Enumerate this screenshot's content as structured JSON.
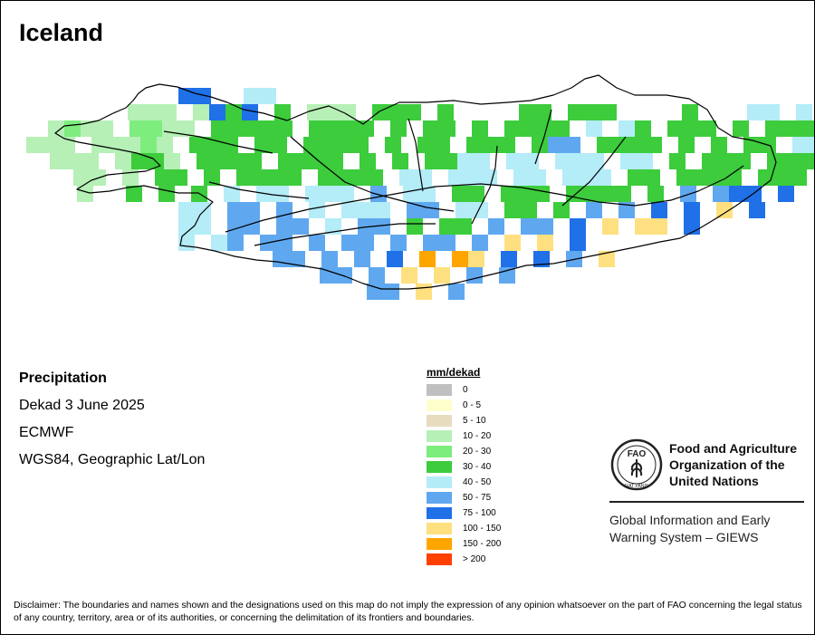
{
  "map_title": "Iceland",
  "info": {
    "variable": "Precipitation",
    "period": "Dekad 3 June 2025",
    "source": "ECMWF",
    "projection": "WGS84, Geographic Lat/Lon"
  },
  "legend": {
    "title": "mm/dekad",
    "items": [
      {
        "label": "0",
        "color": "#c0c0c0"
      },
      {
        "label": "0 - 5",
        "color": "#ffffcc"
      },
      {
        "label": "5 - 10",
        "color": "#e8dcbe"
      },
      {
        "label": "10 - 20",
        "color": "#b6f0b6"
      },
      {
        "label": "20 - 30",
        "color": "#7ded7d"
      },
      {
        "label": "30 - 40",
        "color": "#3ccc3c"
      },
      {
        "label": "40 - 50",
        "color": "#b4ecf8"
      },
      {
        "label": "50 - 75",
        "color": "#5fa8f0"
      },
      {
        "label": "75 - 100",
        "color": "#2070e8"
      },
      {
        "label": "100 - 150",
        "color": "#ffe080"
      },
      {
        "label": "150 - 200",
        "color": "#ffa500"
      },
      {
        "label": "> 200",
        "color": "#ff4000"
      }
    ]
  },
  "organization": {
    "name": "Food and Agriculture\nOrganization of the\nUnited Nations",
    "logo_letters": "FAO",
    "logo_motto": "FIAT PANIS",
    "system": "Global Information and Early\nWarning System – GIEWS"
  },
  "disclaimer": "Disclaimer: The boundaries and names shown and the designations used on this map do not imply the expression of any opinion whatsoever on the part of FAO concerning the legal status of any country, territory, area or of its authorities, or concerning the delimitation of its frontiers and boundaries."
}
